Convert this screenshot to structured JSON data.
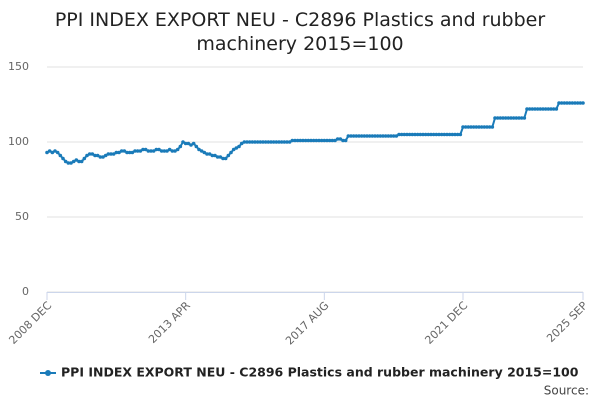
{
  "chart_data": {
    "type": "line",
    "title": "PPI INDEX EXPORT NEU - C2896 Plastics and rubber machinery 2015=100",
    "source": "Source:",
    "categories": [
      "2008 DEC",
      null,
      null,
      null,
      null,
      null,
      null,
      null,
      null,
      null,
      null,
      null,
      null,
      null,
      null,
      null,
      null,
      null,
      null,
      null,
      null,
      null,
      null,
      null,
      null,
      null,
      null,
      null,
      null,
      null,
      null,
      null,
      null,
      null,
      null,
      null,
      null,
      null,
      null,
      null,
      null,
      null,
      null,
      null,
      null,
      null,
      null,
      null,
      null,
      null,
      null,
      null,
      "2013 APR",
      null,
      null,
      null,
      null,
      null,
      null,
      null,
      null,
      null,
      null,
      null,
      null,
      null,
      null,
      null,
      null,
      null,
      null,
      null,
      null,
      null,
      null,
      null,
      null,
      null,
      null,
      null,
      null,
      null,
      null,
      null,
      null,
      null,
      null,
      null,
      null,
      null,
      null,
      null,
      null,
      null,
      null,
      null,
      null,
      null,
      null,
      null,
      null,
      null,
      null,
      null,
      "2017 AUG",
      null,
      null,
      null,
      null,
      null,
      null,
      null,
      null,
      null,
      null,
      null,
      null,
      null,
      null,
      null,
      null,
      null,
      null,
      null,
      null,
      null,
      null,
      null,
      null,
      null,
      null,
      null,
      null,
      null,
      null,
      null,
      null,
      null,
      null,
      null,
      null,
      null,
      null,
      null,
      null,
      null,
      null,
      null,
      null,
      null,
      null,
      null,
      null,
      null,
      null,
      null,
      "2021 DEC",
      null,
      null,
      null,
      null,
      null,
      null,
      null,
      null,
      null,
      null,
      null,
      null,
      null,
      null,
      null,
      null,
      null,
      null,
      null,
      null,
      null,
      null,
      null,
      null,
      null,
      null,
      null,
      null,
      null,
      null,
      null,
      null,
      null,
      null,
      null,
      null,
      null,
      null,
      null,
      null,
      null,
      null,
      null,
      null,
      "2025 SEP"
    ],
    "series": [
      {
        "name": "PPI INDEX EXPORT NEU - C2896 Plastics and rubber machinery 2015=100",
        "color": "#1a7bb9",
        "values": [
          93,
          94,
          93,
          94,
          93,
          91,
          89,
          87,
          86,
          86,
          87,
          88,
          87,
          87,
          89,
          91,
          92,
          92,
          91,
          91,
          90,
          90,
          91,
          92,
          92,
          92,
          93,
          93,
          94,
          94,
          93,
          93,
          93,
          94,
          94,
          94,
          95,
          95,
          94,
          94,
          94,
          95,
          95,
          94,
          94,
          94,
          95,
          94,
          94,
          95,
          97,
          100,
          99,
          99,
          98,
          99,
          97,
          95,
          94,
          93,
          92,
          92,
          91,
          91,
          90,
          90,
          89,
          89,
          91,
          93,
          95,
          96,
          97,
          99,
          100,
          100,
          100,
          100,
          100,
          100,
          100,
          100,
          100,
          100,
          100,
          100,
          100,
          100,
          100,
          100,
          100,
          100,
          101,
          101,
          101,
          101,
          101,
          101,
          101,
          101,
          101,
          101,
          101,
          101,
          101,
          101,
          101,
          101,
          101,
          102,
          102,
          101,
          101,
          104,
          104,
          104,
          104,
          104,
          104,
          104,
          104,
          104,
          104,
          104,
          104,
          104,
          104,
          104,
          104,
          104,
          104,
          104,
          105,
          105,
          105,
          105,
          105,
          105,
          105,
          105,
          105,
          105,
          105,
          105,
          105,
          105,
          105,
          105,
          105,
          105,
          105,
          105,
          105,
          105,
          105,
          105,
          110,
          110,
          110,
          110,
          110,
          110,
          110,
          110,
          110,
          110,
          110,
          110,
          116,
          116,
          116,
          116,
          116,
          116,
          116,
          116,
          116,
          116,
          116,
          116,
          122,
          122,
          122,
          122,
          122,
          122,
          122,
          122,
          122,
          122,
          122,
          122,
          126,
          126,
          126,
          126,
          126,
          126,
          126,
          126,
          126,
          126
        ]
      }
    ],
    "ylim": [
      0,
      150
    ],
    "yticks": [
      0,
      50,
      100,
      150
    ],
    "grid": true
  }
}
